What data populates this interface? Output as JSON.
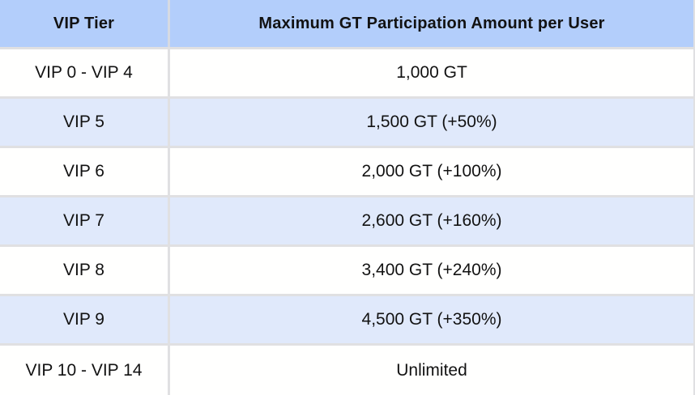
{
  "table": {
    "columns": [
      {
        "label": "VIP Tier"
      },
      {
        "label": "Maximum GT Participation Amount per User"
      }
    ],
    "rows": [
      {
        "tier": "VIP 0 - VIP 4",
        "amount": "1,000 GT"
      },
      {
        "tier": "VIP 5",
        "amount": "1,500 GT (+50%)"
      },
      {
        "tier": "VIP 6",
        "amount": "2,000 GT (+100%)"
      },
      {
        "tier": "VIP 7",
        "amount": "2,600 GT (+160%)"
      },
      {
        "tier": "VIP 8",
        "amount": "3,400 GT (+240%)"
      },
      {
        "tier": "VIP 9",
        "amount": "4,500 GT (+350%)"
      },
      {
        "tier": "VIP 10 - VIP 14",
        "amount": "Unlimited"
      }
    ],
    "colors": {
      "header_bg": "#B3CEFB",
      "header_divider": "#D6DAE2",
      "row_bg": "#FFFFFE",
      "row_alt_bg": "#E0E9FB",
      "divider": "#E0E0E2",
      "text": "#121212"
    }
  }
}
